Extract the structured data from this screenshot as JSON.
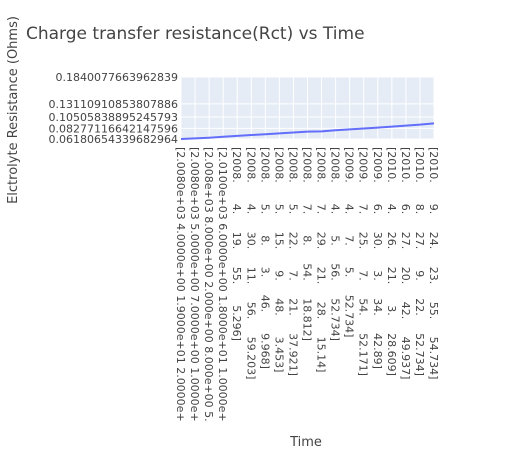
{
  "chart_data": {
    "type": "line",
    "title": "Charge transfer resistance(Rct) vs Time",
    "xlabel": "Time",
    "ylabel": "Elctrolyte Resistance (Ohms)",
    "x_tick_labels": [
      "[2.0080e+03 4.0000e+00 1.9000e+01 2.0000e+",
      "[2.0080e+03 5.0000e+00 7.0000e+00 1.0000e+",
      "[2.008e+03 8.000e+00 2.000e+00 8.000e+00 5.",
      "[2.0100e+03 6.0000e+00 1.8000e+01 1.0000e+",
      "[2008.      4.     19.     55.      5.296]",
      "[2008.      4.     30.     11.     56.     59.203]",
      "[2008.      5.      8.      3.     46.      9.968]",
      "[2008.      5.     15.      9.     48.      3.453]",
      "[2008.      5.     22.      7.     21.     37.921]",
      "[2008.      7.      8.     54.     18.812]",
      "[2008.      7.     29.     21.     28.     15.14]",
      "[2008.      4.      5.     56.     52.734]",
      "[2009.      4.      7.      5.     52.734]",
      "[2009.      7.     25.      7.     54.     52.171]",
      "[2009.      6.     30.      3.     34.     42.89]",
      "[2010.      4.     26.     21.      3.     28.609]",
      "[2010.      6.     27.     20.     42.     49.937]",
      "[2010.      8.     27.      9.     22.     52.734]",
      "[2010.      9.     24.     23.     55.     54.734]"
    ],
    "ytick_labels": [
      "0.06180654339682964",
      "0.08277116642147596",
      "0.10505838895245793",
      "0.13110910853807886",
      "0.1840077663962839"
    ],
    "ytick_values": [
      0.06180654339682964,
      0.08277116642147596,
      0.10505838895245793,
      0.13110910853807886,
      0.1840077663962839
    ],
    "ylim": [
      0.0618,
      0.184
    ],
    "series": [
      {
        "values": [
          0.0618,
          0.063,
          0.0643,
          0.0662,
          0.0679,
          0.0696,
          0.0712,
          0.0729,
          0.0746,
          0.0763,
          0.0768,
          0.079,
          0.0807,
          0.0825,
          0.0843,
          0.0862,
          0.0881,
          0.0902,
          0.0925
        ]
      }
    ],
    "grid": true,
    "line_color": "#636efa",
    "plot_bg": "#e5ecf6"
  }
}
